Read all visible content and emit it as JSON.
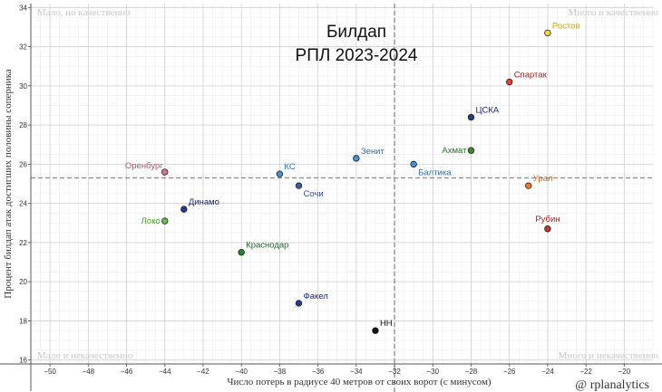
{
  "chart_data": {
    "type": "scatter",
    "title": "Билдап",
    "subtitle": "РПЛ 2023-2024",
    "xlabel": "Число потерь в радиусе 40 метров от своих ворот (с минусом)",
    "ylabel": "Процент билдап атак достигших половины соперника",
    "xlim": [
      -51,
      -18.5
    ],
    "ylim": [
      15.8,
      34.2
    ],
    "xticks": [
      -50,
      -48,
      -46,
      -44,
      -42,
      -40,
      -38,
      -36,
      -34,
      -32,
      -30,
      -28,
      -26,
      -24,
      -22,
      -20
    ],
    "yticks": [
      16,
      18,
      20,
      22,
      24,
      26,
      28,
      30,
      32,
      34
    ],
    "grid": true,
    "minor_step": 0.5,
    "mean_x": -32,
    "mean_y": 25.3,
    "corner_labels": {
      "top_left": "Мало, но качественно",
      "top_right": "Много и качественно",
      "bottom_left": "Мало и некачественно",
      "bottom_right": "Много и некачественно"
    },
    "credit": "@ rplanalytics",
    "points": [
      {
        "name": "Ростов",
        "x": -24,
        "y": 32.7,
        "color": "#f5d742",
        "label_color": "#c9a800",
        "label_pos": "top-right"
      },
      {
        "name": "Спартак",
        "x": -26,
        "y": 30.2,
        "color": "#e0442e",
        "label_color": "#a11f1f",
        "label_pos": "top-right"
      },
      {
        "name": "ЦСКА",
        "x": -28,
        "y": 28.4,
        "color": "#1f3f8f",
        "label_color": "#13287a",
        "label_pos": "top-right"
      },
      {
        "name": "Ахмат",
        "x": -28,
        "y": 26.7,
        "color": "#3d8a3a",
        "label_color": "#2e6b2a",
        "label_pos": "left"
      },
      {
        "name": "Зенит",
        "x": -34,
        "y": 26.3,
        "color": "#4a90d9",
        "label_color": "#2e6fa8",
        "label_pos": "top-right"
      },
      {
        "name": "Балтика",
        "x": -31,
        "y": 26.0,
        "color": "#4a90d9",
        "label_color": "#2e6fa8",
        "label_pos": "bottom-right"
      },
      {
        "name": "Оренбург",
        "x": -44,
        "y": 25.6,
        "color": "#d9739c",
        "label_color": "#b5527a",
        "label_pos": "top-left"
      },
      {
        "name": "КС",
        "x": -38,
        "y": 25.5,
        "color": "#4a90d9",
        "label_color": "#2e6fa8",
        "label_pos": "top-right"
      },
      {
        "name": "Сочи",
        "x": -37,
        "y": 24.9,
        "color": "#2f5fae",
        "label_color": "#2f4f9e",
        "label_pos": "bottom-right"
      },
      {
        "name": "Урал",
        "x": -25,
        "y": 24.9,
        "color": "#f07a1a",
        "label_color": "#d2691e",
        "label_pos": "top-right"
      },
      {
        "name": "Динамо",
        "x": -43,
        "y": 23.7,
        "color": "#1f3f8f",
        "label_color": "#13287a",
        "label_pos": "top-right"
      },
      {
        "name": "Локо",
        "x": -44,
        "y": 23.1,
        "color": "#6ac04a",
        "label_color": "#4a9a2a",
        "label_pos": "left"
      },
      {
        "name": "Рубин",
        "x": -24,
        "y": 22.7,
        "color": "#c0392b",
        "label_color": "#a11f1f",
        "label_pos": "top"
      },
      {
        "name": "Краснодар",
        "x": -40,
        "y": 21.5,
        "color": "#2e7d32",
        "label_color": "#1b5e20",
        "label_pos": "top-right"
      },
      {
        "name": "Факел",
        "x": -37,
        "y": 18.9,
        "color": "#1f3f8f",
        "label_color": "#13287a",
        "label_pos": "top-right"
      },
      {
        "name": "НН",
        "x": -33,
        "y": 17.5,
        "color": "#111111",
        "label_color": "#111111",
        "label_pos": "top-right"
      }
    ]
  }
}
